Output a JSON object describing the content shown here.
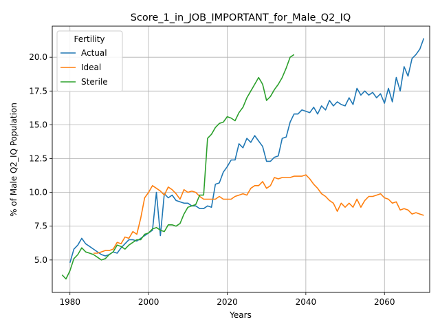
{
  "chart_data": {
    "type": "line",
    "title": "Score_1_in_JOB_IMPORTANT_for_Male_Q2_IQ",
    "xlabel": "Years",
    "ylabel": "% of Male Q2_IQ Population",
    "xlim": [
      1975.5,
      2071.5
    ],
    "ylim": [
      2.6,
      22.3
    ],
    "x_ticks": [
      1980,
      2000,
      2020,
      2040,
      2060
    ],
    "x_tick_labels": [
      "1980",
      "2000",
      "2020",
      "2040",
      "2060"
    ],
    "y_ticks": [
      5.0,
      7.5,
      10.0,
      12.5,
      15.0,
      17.5,
      20.0
    ],
    "y_tick_labels": [
      "5.0",
      "7.5",
      "10.0",
      "12.5",
      "15.0",
      "17.5",
      "20.0"
    ],
    "grid": true,
    "legend": {
      "title": "Fertility",
      "placement": "upper-left"
    },
    "colors": {
      "Actual": "#1f77b4",
      "Ideal": "#ff7f0e",
      "Sterile": "#2ca02c"
    },
    "series": [
      {
        "name": "Actual",
        "x": [
          1980,
          1981,
          1982,
          1983,
          1984,
          1985,
          1986,
          1987,
          1988,
          1989,
          1990,
          1991,
          1992,
          1993,
          1994,
          1995,
          1996,
          1997,
          1998,
          1999,
          2000,
          2001,
          2002,
          2003,
          2004,
          2005,
          2006,
          2007,
          2008,
          2009,
          2010,
          2011,
          2012,
          2013,
          2014,
          2015,
          2016,
          2017,
          2018,
          2019,
          2020,
          2021,
          2022,
          2023,
          2024,
          2025,
          2026,
          2027,
          2028,
          2029,
          2030,
          2031,
          2032,
          2033,
          2034,
          2035,
          2036,
          2037,
          2038,
          2039,
          2040,
          2041,
          2042,
          2043,
          2044,
          2045,
          2046,
          2047,
          2048,
          2049,
          2050,
          2051,
          2052,
          2053,
          2054,
          2055,
          2056,
          2057,
          2058,
          2059,
          2060,
          2061,
          2062,
          2063,
          2064,
          2065,
          2066,
          2067,
          2068,
          2069,
          2070
        ],
        "values": [
          4.8,
          5.8,
          6.1,
          6.6,
          6.2,
          6.0,
          5.8,
          5.6,
          5.4,
          5.3,
          5.4,
          5.6,
          5.5,
          5.9,
          6.2,
          6.5,
          6.5,
          6.4,
          6.6,
          6.8,
          7.0,
          7.2,
          10.0,
          6.8,
          9.9,
          9.6,
          9.8,
          9.4,
          9.3,
          9.2,
          9.2,
          9.0,
          9.0,
          8.8,
          8.8,
          9.0,
          8.9,
          10.6,
          10.7,
          11.5,
          11.9,
          12.4,
          12.4,
          13.6,
          13.3,
          14.0,
          13.7,
          14.2,
          13.8,
          13.4,
          12.3,
          12.3,
          12.6,
          12.7,
          14.0,
          14.1,
          15.2,
          15.8,
          15.8,
          16.1,
          16.0,
          15.9,
          16.3,
          15.8,
          16.4,
          16.1,
          16.8,
          16.4,
          16.7,
          16.5,
          16.4,
          17.0,
          16.5,
          17.7,
          17.2,
          17.5,
          17.2,
          17.4,
          17.0,
          17.3,
          16.6,
          17.7,
          16.7,
          18.5,
          17.5,
          19.3,
          18.6,
          19.9,
          20.2,
          20.6,
          21.4
        ]
      },
      {
        "name": "Ideal",
        "x": [
          1986,
          1987,
          1988,
          1989,
          1990,
          1991,
          1992,
          1993,
          1994,
          1995,
          1996,
          1997,
          1998,
          1999,
          2000,
          2001,
          2002,
          2003,
          2004,
          2005,
          2006,
          2007,
          2008,
          2009,
          2010,
          2011,
          2012,
          2013,
          2014,
          2015,
          2016,
          2017,
          2018,
          2019,
          2020,
          2021,
          2022,
          2023,
          2024,
          2025,
          2026,
          2027,
          2028,
          2029,
          2030,
          2031,
          2032,
          2033,
          2034,
          2035,
          2036,
          2037,
          2038,
          2039,
          2040,
          2041,
          2042,
          2043,
          2044,
          2045,
          2046,
          2047,
          2048,
          2049,
          2050,
          2051,
          2052,
          2053,
          2054,
          2055,
          2056,
          2057,
          2058,
          2059,
          2060,
          2061,
          2062,
          2063,
          2064,
          2065,
          2066,
          2067,
          2068,
          2069,
          2070
        ],
        "values": [
          5.5,
          5.5,
          5.6,
          5.7,
          5.7,
          5.8,
          6.3,
          6.2,
          6.7,
          6.6,
          7.1,
          6.9,
          8.1,
          9.6,
          10.0,
          10.5,
          10.3,
          10.1,
          9.8,
          10.4,
          10.2,
          9.9,
          9.5,
          10.2,
          10.0,
          10.1,
          10.0,
          9.7,
          9.5,
          9.5,
          9.5,
          9.5,
          9.7,
          9.5,
          9.5,
          9.5,
          9.7,
          9.8,
          9.9,
          9.8,
          10.3,
          10.5,
          10.5,
          10.8,
          10.3,
          10.5,
          11.1,
          11.0,
          11.1,
          11.1,
          11.1,
          11.2,
          11.2,
          11.2,
          11.3,
          11.0,
          10.6,
          10.3,
          9.9,
          9.7,
          9.4,
          9.2,
          8.6,
          9.2,
          8.9,
          9.2,
          8.9,
          9.5,
          8.9,
          9.4,
          9.7,
          9.7,
          9.8,
          9.9,
          9.6,
          9.5,
          9.2,
          9.3,
          8.7,
          8.8,
          8.7,
          8.4,
          8.5,
          8.4,
          8.3
        ]
      },
      {
        "name": "Sterile",
        "x": [
          1978,
          1979,
          1980,
          1981,
          1982,
          1983,
          1984,
          1985,
          1986,
          1987,
          1988,
          1989,
          1990,
          1991,
          1992,
          1993,
          1994,
          1995,
          1996,
          1997,
          1998,
          1999,
          2000,
          2001,
          2002,
          2003,
          2004,
          2005,
          2006,
          2007,
          2008,
          2009,
          2010,
          2011,
          2012,
          2013,
          2014,
          2015,
          2016,
          2017,
          2018,
          2019,
          2020,
          2021,
          2022,
          2023,
          2024,
          2025,
          2026,
          2027,
          2028,
          2029,
          2030,
          2031,
          2032,
          2033,
          2034,
          2035,
          2036,
          2037
        ],
        "values": [
          3.9,
          3.6,
          4.2,
          5.1,
          5.4,
          5.9,
          5.6,
          5.5,
          5.4,
          5.2,
          5.0,
          5.1,
          5.4,
          5.6,
          6.1,
          6.0,
          5.8,
          6.1,
          6.3,
          6.5,
          6.5,
          6.9,
          7.0,
          7.3,
          7.4,
          7.2,
          7.1,
          7.6,
          7.6,
          7.5,
          7.7,
          8.4,
          8.9,
          9.0,
          9.1,
          9.8,
          9.8,
          14.0,
          14.3,
          14.8,
          15.1,
          15.2,
          15.6,
          15.5,
          15.3,
          15.9,
          16.3,
          17.0,
          17.5,
          18.0,
          18.5,
          18.0,
          16.8,
          17.1,
          17.6,
          18.0,
          18.5,
          19.2,
          20.0,
          20.2
        ]
      }
    ]
  }
}
